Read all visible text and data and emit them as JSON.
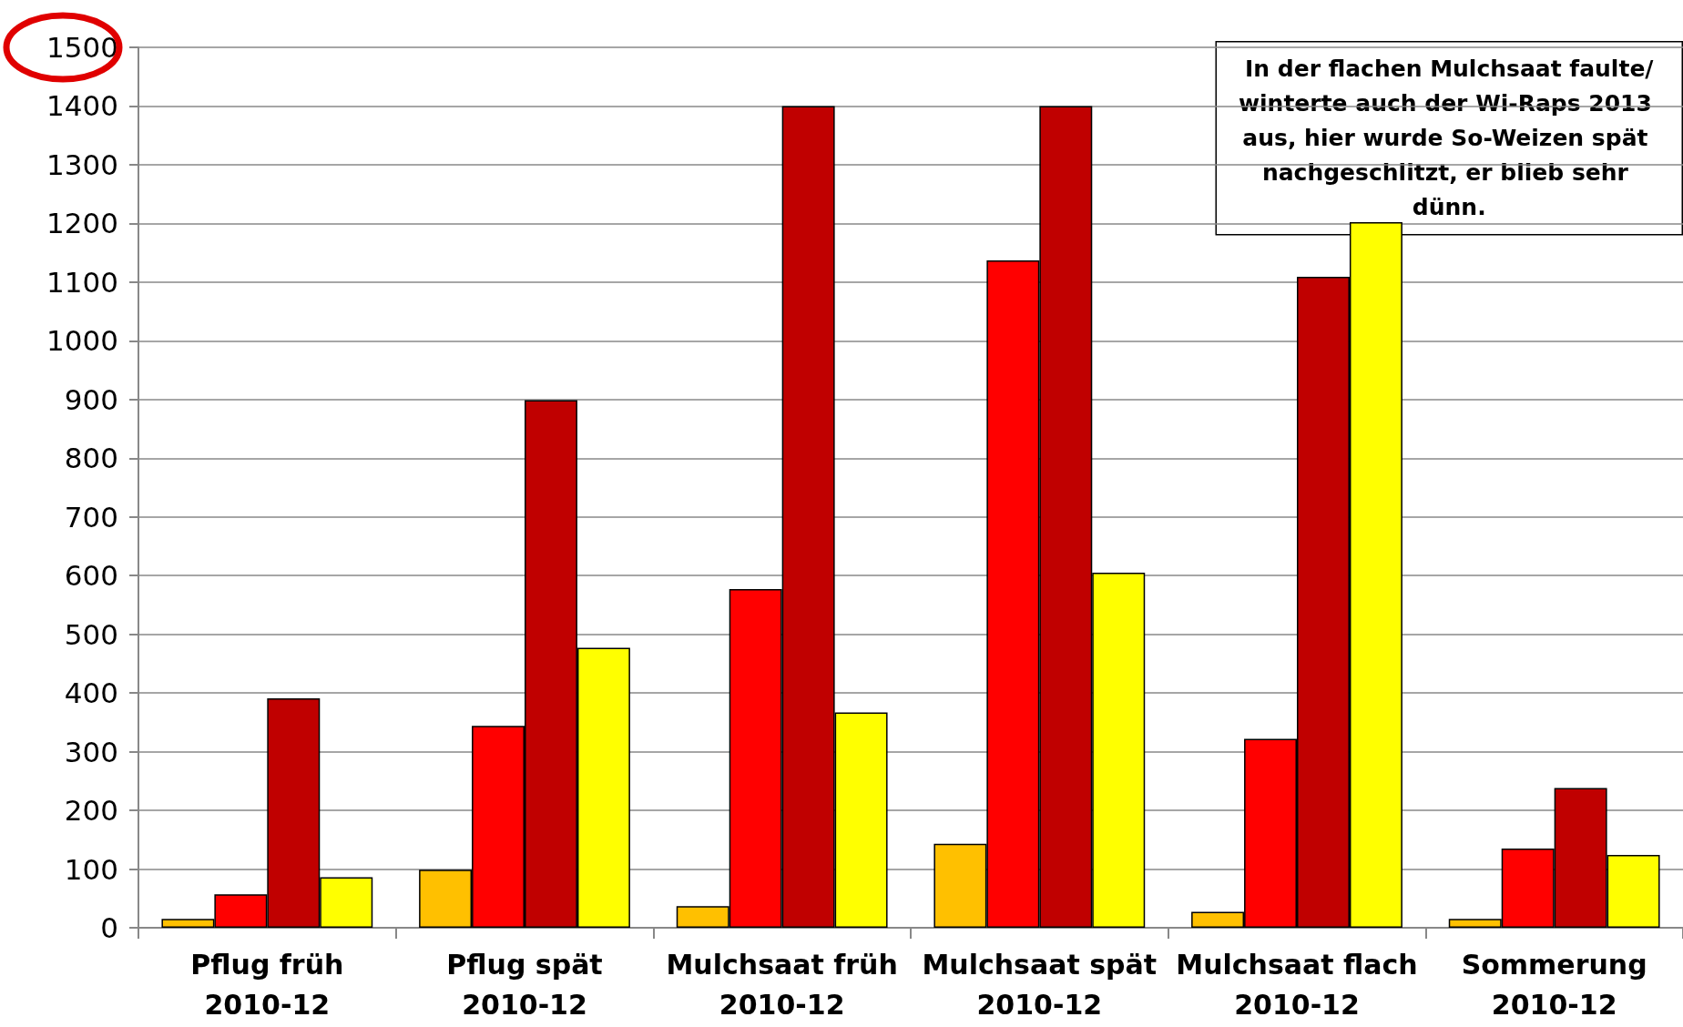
{
  "chart_data": {
    "type": "bar",
    "categories": [
      "Pflug früh\n2010-12",
      "Pflug spät\n2010-12",
      "Mulchsaat früh\n2010-12",
      "Mulchsaat spät\n2010-12",
      "Mulchsaat flach\n2010-12",
      "Sommerung\n2010-12"
    ],
    "series": [
      {
        "color": "#ffc000",
        "values": [
          15,
          99,
          37,
          143,
          27,
          15
        ]
      },
      {
        "color": "#ff0000",
        "values": [
          57,
          344,
          577,
          1137,
          322,
          135
        ]
      },
      {
        "color": "#c00000",
        "values": [
          391,
          899,
          1400,
          1400,
          1109,
          238
        ]
      },
      {
        "color": "#ffff00",
        "values": [
          86,
          477,
          367,
          605,
          1202,
          124
        ]
      }
    ],
    "ylim": [
      0,
      1500
    ],
    "yticks": [
      0,
      100,
      200,
      300,
      400,
      500,
      600,
      700,
      800,
      900,
      1000,
      1100,
      1200,
      1300,
      1400,
      1500
    ],
    "grid": "y",
    "annotations": [
      "In der flachen Mulchsaat faulte/winterte auch der Wi-Raps 2013 aus, hier wurde So-Weizen spät nachgeschlitzt, er blieb sehr dünn."
    ]
  }
}
